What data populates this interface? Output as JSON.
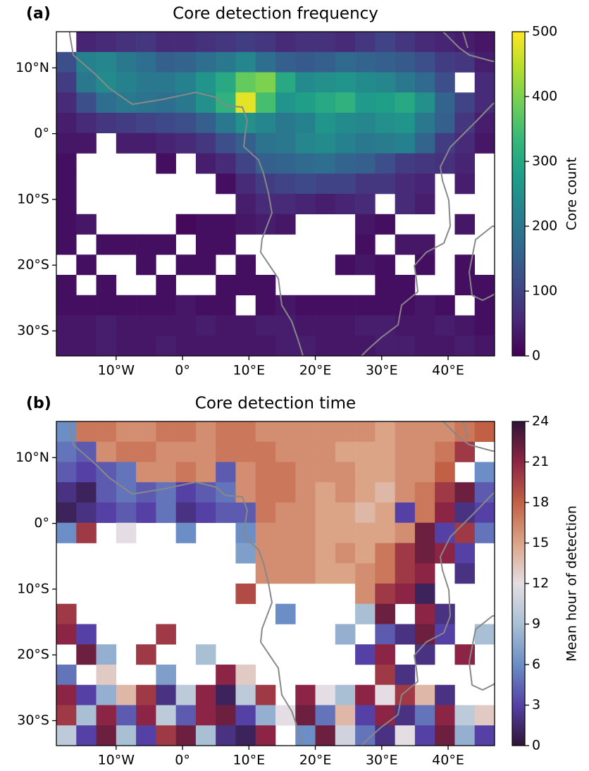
{
  "chart_data": [
    {
      "type": "heatmap",
      "label": "(a)",
      "title": "Core detection frequency",
      "xlim": [
        -19,
        47
      ],
      "ylim": [
        -33.8,
        15.5
      ],
      "xticks": [
        {
          "value": -10,
          "label": "10°W"
        },
        {
          "value": 0,
          "label": "0°"
        },
        {
          "value": 10,
          "label": "10°E"
        },
        {
          "value": 20,
          "label": "20°E"
        },
        {
          "value": 30,
          "label": "30°E"
        },
        {
          "value": 40,
          "label": "40°E"
        }
      ],
      "yticks": [
        {
          "value": 10,
          "label": "10°N"
        },
        {
          "value": 0,
          "label": "0°"
        },
        {
          "value": -10,
          "label": "10°S"
        },
        {
          "value": -20,
          "label": "20°S"
        },
        {
          "value": -30,
          "label": "30°S"
        }
      ],
      "colorbar": {
        "label": "Core count",
        "lim": [
          0,
          500
        ],
        "ticks": [
          0,
          100,
          200,
          300,
          400,
          500
        ]
      },
      "colormap": [
        "#440154",
        "#482878",
        "#3e4a89",
        "#31688e",
        "#26828e",
        "#1f9e89",
        "#35b779",
        "#6ece58",
        "#b5de2b",
        "#fde725"
      ],
      "z": [
        [
          null,
          50,
          60,
          70,
          80,
          60,
          60,
          70,
          80,
          90,
          80,
          60,
          70,
          70,
          60,
          80,
          100,
          80,
          60,
          50,
          40,
          30
        ],
        [
          120,
          220,
          230,
          200,
          180,
          150,
          160,
          180,
          200,
          230,
          180,
          150,
          140,
          150,
          170,
          160,
          150,
          140,
          120,
          90,
          80,
          40
        ],
        [
          90,
          200,
          240,
          220,
          200,
          200,
          220,
          260,
          300,
          380,
          400,
          300,
          240,
          250,
          260,
          240,
          230,
          200,
          170,
          120,
          null,
          60
        ],
        [
          60,
          120,
          180,
          200,
          190,
          180,
          200,
          250,
          320,
          480,
          350,
          260,
          280,
          300,
          320,
          270,
          280,
          300,
          250,
          160,
          100,
          60
        ],
        [
          40,
          60,
          80,
          90,
          100,
          110,
          120,
          150,
          200,
          250,
          230,
          200,
          220,
          260,
          240,
          230,
          250,
          260,
          200,
          150,
          80,
          40
        ],
        [
          30,
          30,
          null,
          40,
          40,
          50,
          60,
          80,
          120,
          150,
          190,
          200,
          230,
          240,
          220,
          200,
          210,
          220,
          160,
          90,
          60,
          30
        ],
        [
          20,
          null,
          null,
          null,
          null,
          20,
          null,
          40,
          60,
          100,
          150,
          160,
          170,
          180,
          160,
          150,
          120,
          90,
          80,
          70,
          50,
          null
        ],
        [
          20,
          null,
          null,
          null,
          null,
          null,
          null,
          null,
          20,
          60,
          90,
          100,
          110,
          100,
          100,
          80,
          80,
          60,
          50,
          null,
          40,
          null
        ],
        [
          20,
          null,
          null,
          null,
          null,
          null,
          null,
          null,
          null,
          40,
          60,
          60,
          50,
          40,
          50,
          60,
          null,
          60,
          40,
          null,
          null,
          null
        ],
        [
          20,
          30,
          null,
          null,
          null,
          null,
          10,
          20,
          20,
          30,
          40,
          30,
          null,
          null,
          null,
          30,
          20,
          null,
          null,
          null,
          30,
          null
        ],
        [
          20,
          null,
          20,
          20,
          20,
          20,
          null,
          20,
          20,
          null,
          null,
          null,
          null,
          null,
          null,
          20,
          null,
          30,
          30,
          null,
          null,
          null
        ],
        [
          null,
          20,
          null,
          null,
          20,
          null,
          20,
          20,
          null,
          20,
          null,
          null,
          null,
          null,
          20,
          30,
          20,
          null,
          20,
          null,
          20,
          null
        ],
        [
          20,
          null,
          20,
          null,
          null,
          20,
          null,
          null,
          20,
          20,
          20,
          null,
          null,
          null,
          null,
          null,
          20,
          20,
          null,
          null,
          20,
          20
        ],
        [
          20,
          20,
          20,
          20,
          20,
          20,
          30,
          20,
          20,
          null,
          20,
          30,
          20,
          20,
          20,
          20,
          20,
          20,
          30,
          20,
          null,
          20
        ],
        [
          30,
          30,
          40,
          30,
          30,
          30,
          30,
          40,
          30,
          30,
          40,
          40,
          30,
          30,
          30,
          40,
          40,
          30,
          30,
          40,
          30,
          20
        ],
        [
          30,
          30,
          40,
          30,
          30,
          40,
          30,
          30,
          30,
          30,
          30,
          40,
          40,
          30,
          30,
          30,
          40,
          40,
          30,
          30,
          40,
          30
        ]
      ]
    },
    {
      "type": "heatmap",
      "label": "(b)",
      "title": "Core detection time",
      "xlim": [
        -19,
        47
      ],
      "ylim": [
        -33.8,
        15.5
      ],
      "xticks": [
        {
          "value": -10,
          "label": "10°W"
        },
        {
          "value": 0,
          "label": "0°"
        },
        {
          "value": 10,
          "label": "10°E"
        },
        {
          "value": 20,
          "label": "20°E"
        },
        {
          "value": 30,
          "label": "30°E"
        },
        {
          "value": 40,
          "label": "40°E"
        }
      ],
      "yticks": [
        {
          "value": 10,
          "label": "10°N"
        },
        {
          "value": 0,
          "label": "0°"
        },
        {
          "value": -10,
          "label": "10°S"
        },
        {
          "value": -20,
          "label": "20°S"
        },
        {
          "value": -30,
          "label": "30°S"
        }
      ],
      "colorbar": {
        "label": "Mean hour of detection",
        "lim": [
          0,
          24
        ],
        "ticks": [
          0,
          3,
          6,
          9,
          12,
          15,
          18,
          21,
          24
        ]
      },
      "colormap": [
        "#2f1436",
        "#5541a6",
        "#6a8ec5",
        "#a9c0d4",
        "#e4dde3",
        "#dca487",
        "#c26045",
        "#8c2545",
        "#2f1436"
      ],
      "z": [
        [
          6,
          17,
          17,
          16,
          16,
          17,
          17,
          16,
          17,
          17,
          16,
          16,
          16,
          16,
          16,
          16,
          15,
          16,
          16,
          16,
          17,
          18
        ],
        [
          5,
          4,
          16,
          17,
          17,
          16,
          16,
          16,
          17,
          17,
          17,
          16,
          16,
          16,
          15,
          15,
          15,
          16,
          16,
          17,
          20,
          null
        ],
        [
          4,
          3,
          4,
          5,
          16,
          16,
          17,
          16,
          4,
          16,
          17,
          17,
          16,
          16,
          16,
          15,
          15,
          16,
          16,
          18,
          null,
          6
        ],
        [
          2,
          1,
          4,
          5,
          4,
          5,
          3,
          4,
          5,
          16,
          17,
          17,
          16,
          15,
          16,
          15,
          14,
          16,
          17,
          20,
          22,
          4
        ],
        [
          1,
          2,
          3,
          4,
          3,
          5,
          2,
          3,
          4,
          4,
          17,
          16,
          16,
          15,
          15,
          14,
          15,
          3,
          17,
          21,
          2,
          3
        ],
        [
          6,
          20,
          null,
          12,
          null,
          null,
          6,
          null,
          null,
          6,
          16,
          16,
          16,
          15,
          15,
          15,
          15,
          16,
          22,
          3,
          20,
          5
        ],
        [
          null,
          null,
          null,
          null,
          null,
          null,
          null,
          null,
          null,
          7,
          16,
          16,
          16,
          15,
          16,
          15,
          17,
          20,
          22,
          21,
          3,
          null
        ],
        [
          null,
          null,
          null,
          null,
          null,
          null,
          null,
          null,
          null,
          null,
          16,
          16,
          16,
          15,
          15,
          16,
          17,
          20,
          21,
          null,
          2,
          null
        ],
        [
          null,
          null,
          null,
          null,
          null,
          null,
          null,
          null,
          null,
          19,
          null,
          null,
          null,
          null,
          null,
          16,
          20,
          21,
          1,
          null,
          null,
          null
        ],
        [
          20,
          null,
          null,
          null,
          null,
          null,
          null,
          null,
          null,
          null,
          null,
          6,
          null,
          null,
          null,
          9,
          22,
          null,
          21,
          2,
          null,
          null
        ],
        [
          21,
          3,
          null,
          null,
          null,
          20,
          null,
          null,
          null,
          null,
          null,
          null,
          null,
          null,
          8,
          null,
          4,
          2,
          22,
          3,
          null,
          9
        ],
        [
          null,
          22,
          8,
          null,
          20,
          null,
          null,
          9,
          null,
          null,
          null,
          null,
          null,
          null,
          null,
          3,
          21,
          null,
          2,
          null,
          21,
          null
        ],
        [
          5,
          null,
          13,
          null,
          null,
          7,
          null,
          null,
          21,
          13,
          null,
          null,
          null,
          null,
          null,
          null,
          20,
          2,
          null,
          null,
          null,
          null
        ],
        [
          21,
          3,
          8,
          14,
          20,
          2,
          10,
          21,
          1,
          10,
          20,
          null,
          21,
          12,
          9,
          21,
          12,
          20,
          14,
          2,
          null,
          null
        ],
        [
          20,
          9,
          21,
          4,
          21,
          10,
          4,
          21,
          22,
          3,
          8,
          12,
          22,
          5,
          14,
          3,
          21,
          2,
          5,
          21,
          10,
          13
        ],
        [
          10,
          3,
          22,
          9,
          3,
          20,
          22,
          9,
          2,
          1,
          21,
          null,
          6,
          22,
          11,
          5,
          2,
          12,
          3,
          22,
          8,
          3
        ]
      ]
    }
  ]
}
